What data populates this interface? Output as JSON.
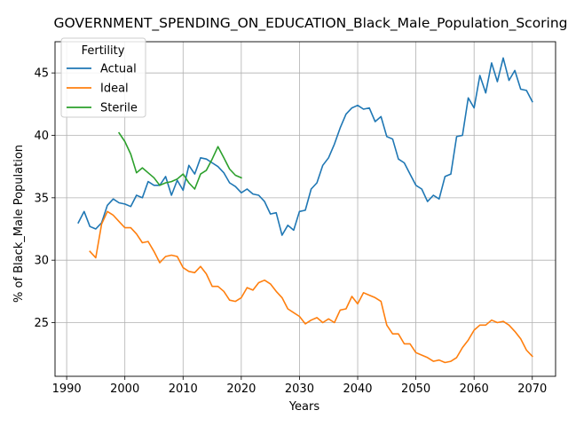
{
  "chart_data": {
    "type": "line",
    "title": "GOVERNMENT_SPENDING_ON_EDUCATION_Black_Male_Population_Scoring",
    "xlabel": "Years",
    "ylabel": "% of Black_Male Population",
    "xlim": [
      1988,
      2074
    ],
    "ylim": [
      20.7,
      47.5
    ],
    "xticks": [
      1990,
      2000,
      2010,
      2020,
      2030,
      2040,
      2050,
      2060,
      2070
    ],
    "yticks": [
      25,
      30,
      35,
      40,
      45
    ],
    "grid": true,
    "legend": {
      "title": "Fertility",
      "placement": "top-left"
    },
    "series": [
      {
        "name": "Actual",
        "color": "#1f77b4",
        "x": [
          1992,
          1993,
          1994,
          1995,
          1996,
          1997,
          1998,
          1999,
          2000,
          2001,
          2002,
          2003,
          2004,
          2005,
          2006,
          2007,
          2008,
          2009,
          2010,
          2011,
          2012,
          2013,
          2014,
          2015,
          2016,
          2017,
          2018,
          2019,
          2020,
          2021,
          2022,
          2023,
          2024,
          2025,
          2026,
          2027,
          2028,
          2029,
          2030,
          2031,
          2032,
          2033,
          2034,
          2035,
          2036,
          2037,
          2038,
          2039,
          2040,
          2041,
          2042,
          2043,
          2044,
          2045,
          2046,
          2047,
          2048,
          2049,
          2050,
          2051,
          2052,
          2053,
          2054,
          2055,
          2056,
          2057,
          2058,
          2059,
          2060,
          2061,
          2062,
          2063,
          2064,
          2065,
          2066,
          2067,
          2068,
          2069,
          2070
        ],
        "values": [
          33.0,
          33.9,
          32.7,
          32.5,
          33.0,
          34.4,
          34.9,
          34.6,
          34.5,
          34.3,
          35.2,
          35.0,
          36.3,
          36.0,
          36.0,
          36.7,
          35.2,
          36.4,
          35.6,
          37.6,
          36.9,
          38.2,
          38.1,
          37.8,
          37.5,
          37.0,
          36.2,
          35.9,
          35.4,
          35.7,
          35.3,
          35.2,
          34.7,
          33.7,
          33.8,
          32.0,
          32.8,
          32.4,
          33.9,
          34.0,
          35.7,
          36.2,
          37.6,
          38.2,
          39.3,
          40.6,
          41.7,
          42.2,
          42.4,
          42.1,
          42.2,
          41.1,
          41.5,
          39.9,
          39.7,
          38.1,
          37.8,
          36.9,
          36.0,
          35.7,
          34.7,
          35.2,
          34.9,
          36.7,
          36.9,
          39.9,
          40.0,
          43.0,
          42.2,
          44.8,
          43.4,
          45.8,
          44.3,
          46.2,
          44.4,
          45.2,
          43.7,
          43.6,
          42.7
        ]
      },
      {
        "name": "Ideal",
        "color": "#ff7f0e",
        "x": [
          1994,
          1995,
          1996,
          1997,
          1998,
          1999,
          2000,
          2001,
          2002,
          2003,
          2004,
          2005,
          2006,
          2007,
          2008,
          2009,
          2010,
          2011,
          2012,
          2013,
          2014,
          2015,
          2016,
          2017,
          2018,
          2019,
          2020,
          2021,
          2022,
          2023,
          2024,
          2025,
          2026,
          2027,
          2028,
          2029,
          2030,
          2031,
          2032,
          2033,
          2034,
          2035,
          2036,
          2037,
          2038,
          2039,
          2040,
          2041,
          2042,
          2043,
          2044,
          2045,
          2046,
          2047,
          2048,
          2049,
          2050,
          2051,
          2052,
          2053,
          2054,
          2055,
          2056,
          2057,
          2058,
          2059,
          2060,
          2061,
          2062,
          2063,
          2064,
          2065,
          2066,
          2067,
          2068,
          2069,
          2070
        ],
        "values": [
          30.7,
          30.2,
          32.9,
          33.9,
          33.6,
          33.1,
          32.6,
          32.6,
          32.1,
          31.4,
          31.5,
          30.7,
          29.8,
          30.3,
          30.4,
          30.3,
          29.4,
          29.1,
          29.0,
          29.5,
          28.9,
          27.9,
          27.9,
          27.5,
          26.8,
          26.7,
          27.0,
          27.8,
          27.6,
          28.2,
          28.4,
          28.1,
          27.5,
          27.0,
          26.1,
          25.8,
          25.5,
          24.9,
          25.2,
          25.4,
          25.0,
          25.3,
          25.0,
          26.0,
          26.1,
          27.1,
          26.5,
          27.4,
          27.2,
          27.0,
          26.7,
          24.8,
          24.1,
          24.1,
          23.3,
          23.3,
          22.6,
          22.4,
          22.2,
          21.9,
          22.0,
          21.8,
          21.9,
          22.2,
          23.0,
          23.6,
          24.4,
          24.8,
          24.8,
          25.2,
          25.0,
          25.1,
          24.8,
          24.3,
          23.7,
          22.8,
          22.3
        ]
      },
      {
        "name": "Sterile",
        "color": "#2ca02c",
        "x": [
          1999,
          2000,
          2001,
          2002,
          2003,
          2004,
          2005,
          2006,
          2007,
          2008,
          2009,
          2010,
          2011,
          2012,
          2013,
          2014,
          2015,
          2016,
          2017,
          2018,
          2019,
          2020
        ],
        "values": [
          40.2,
          39.5,
          38.5,
          37.0,
          37.4,
          37.0,
          36.6,
          36.0,
          36.2,
          36.3,
          36.5,
          36.9,
          36.2,
          35.7,
          36.9,
          37.2,
          38.1,
          39.1,
          38.2,
          37.3,
          36.8,
          36.6
        ]
      }
    ]
  }
}
